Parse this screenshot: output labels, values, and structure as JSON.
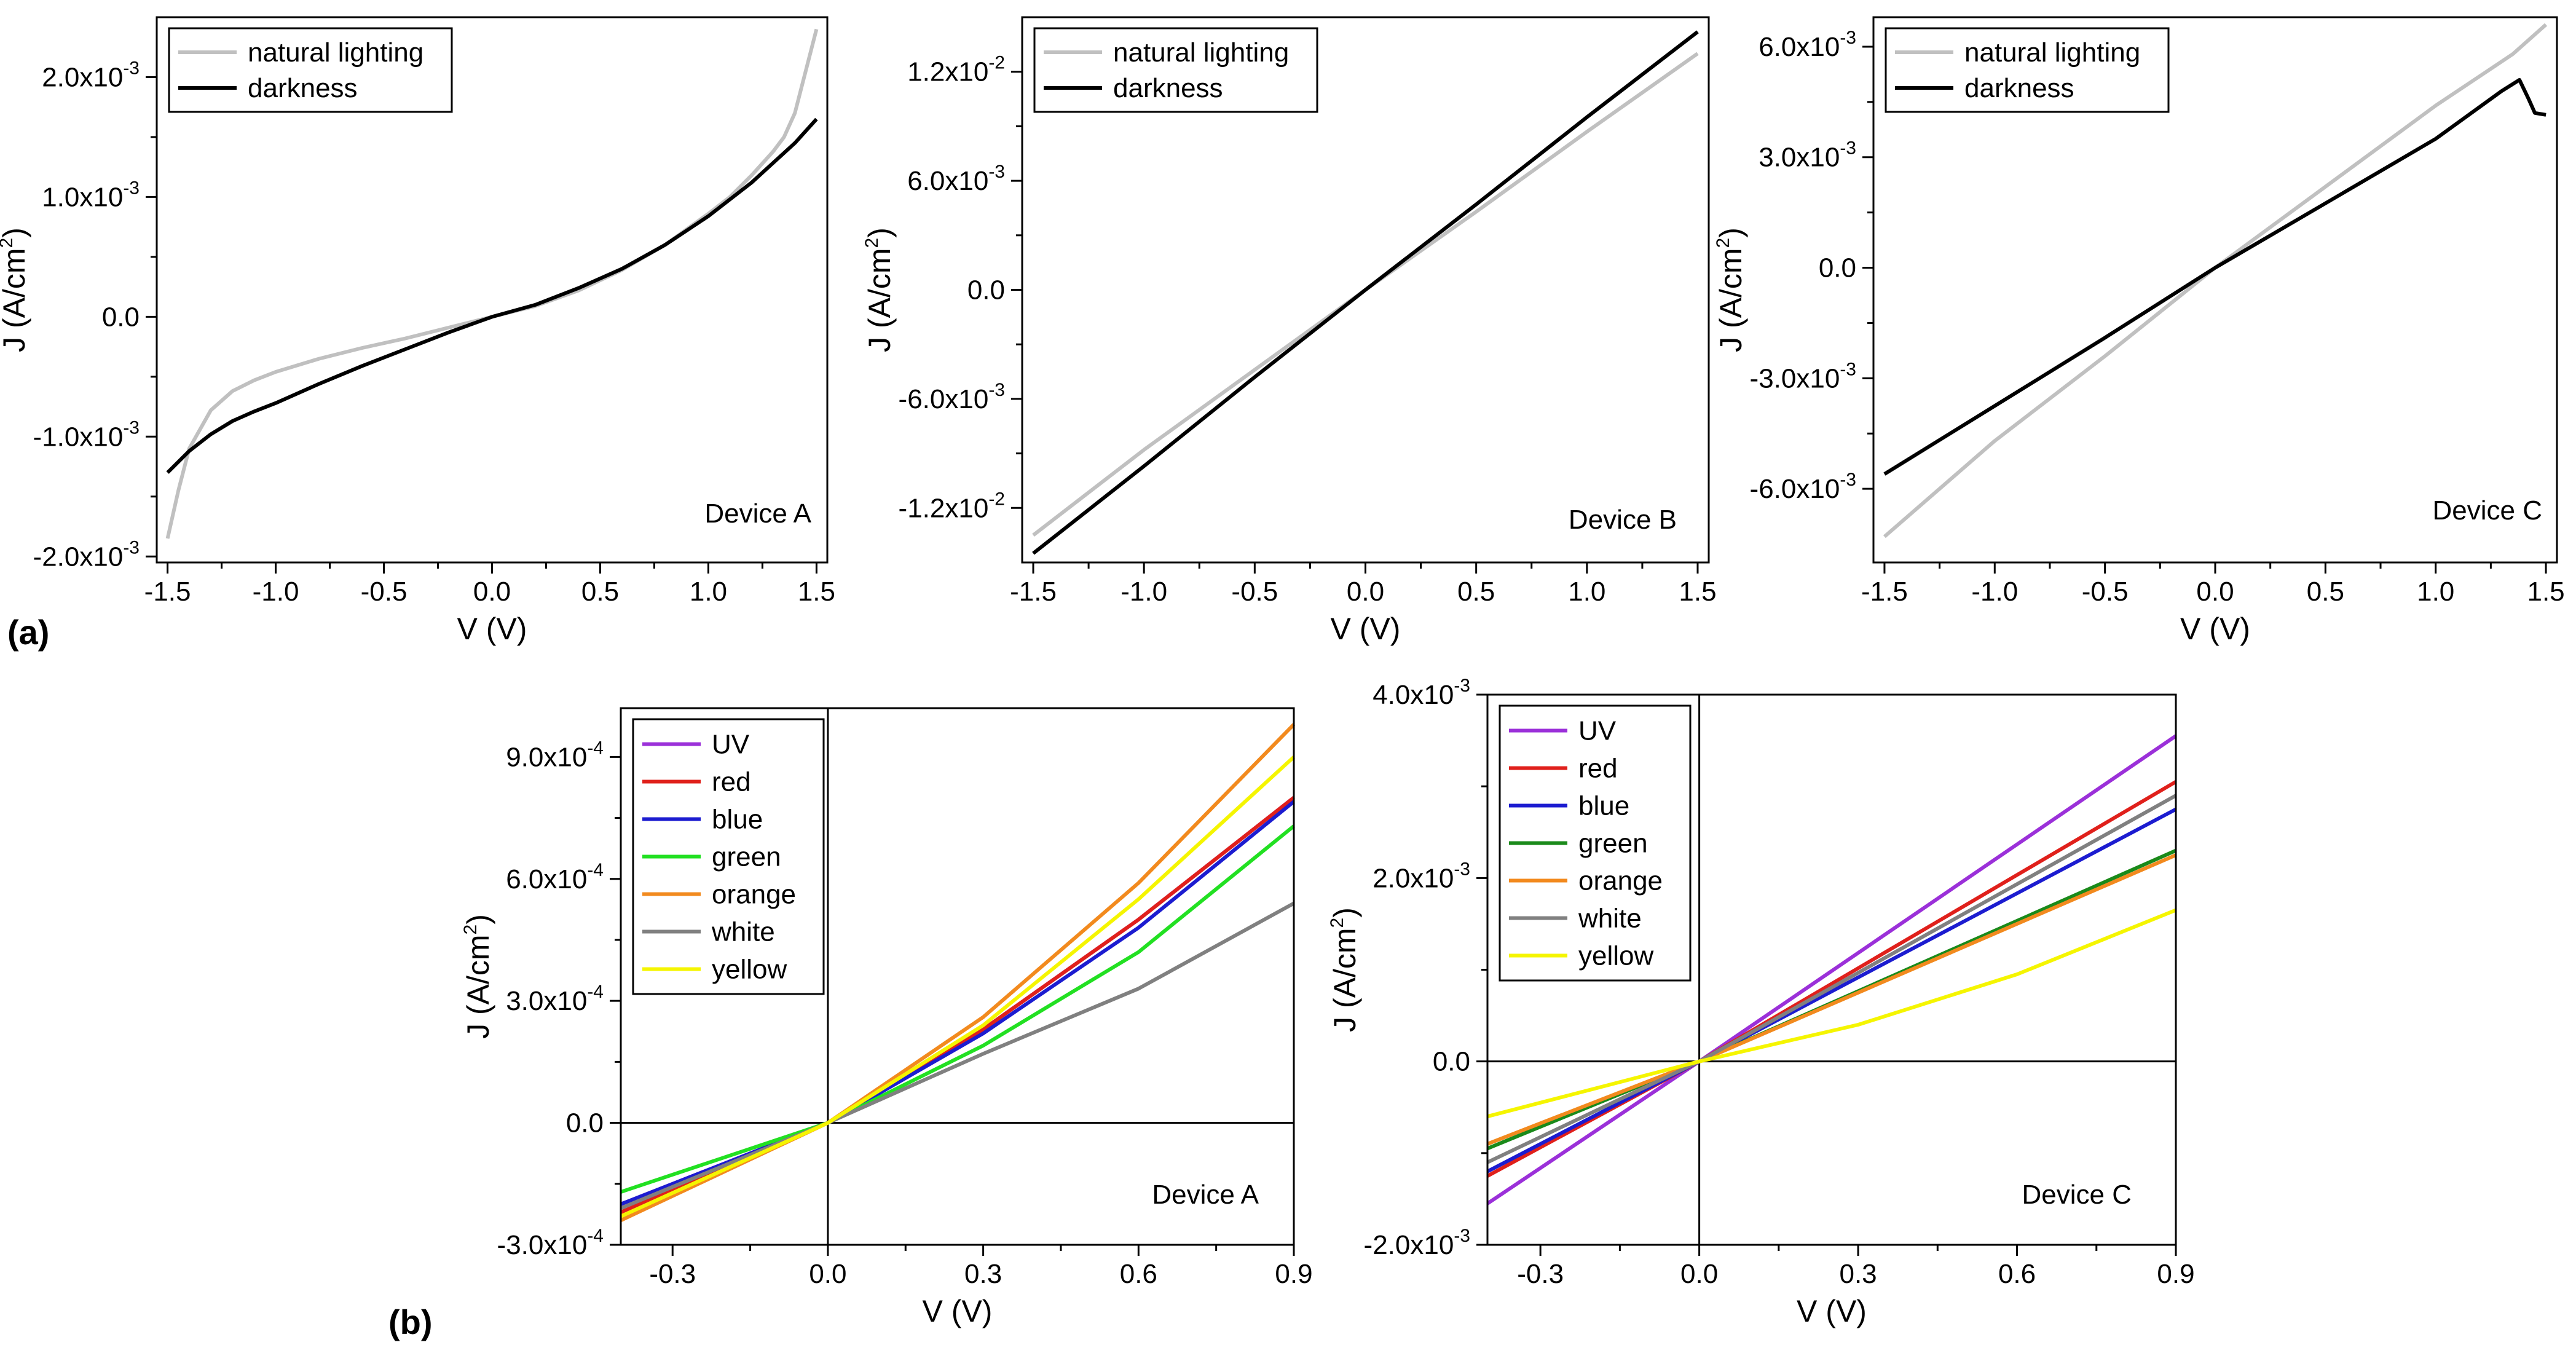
{
  "panel_labels": {
    "a": "(a)",
    "b": "(b)"
  },
  "chart_data": [
    {
      "id": "a1",
      "type": "line",
      "device_label": "Device A",
      "xlabel": "V (V)",
      "ylabel": "J (A/cm2)",
      "xlim": [
        -1.55,
        1.55
      ],
      "ylim": [
        -0.00205,
        0.0025
      ],
      "xticks": [
        -1.5,
        -1.0,
        -0.5,
        0.0,
        0.5,
        1.0,
        1.5
      ],
      "xtick_labels": [
        "-1.5",
        "-1.0",
        "-0.5",
        "0.0",
        "0.5",
        "1.0",
        "1.5"
      ],
      "yticks": [
        -0.002,
        -0.001,
        0,
        0.001,
        0.002
      ],
      "ytick_labels": [
        {
          "mant": "-2.0x10",
          "exp": "-3"
        },
        {
          "mant": "-1.0x10",
          "exp": "-3"
        },
        {
          "mant": "0.0",
          "exp": ""
        },
        {
          "mant": "1.0x10",
          "exp": "-3"
        },
        {
          "mant": "2.0x10",
          "exp": "-3"
        }
      ],
      "zero_lines": false,
      "legend": "top-left",
      "series": [
        {
          "name": "natural lighting",
          "color": "#c0c0c0",
          "x": [
            -1.5,
            -1.45,
            -1.4,
            -1.3,
            -1.2,
            -1.1,
            -1.0,
            -0.8,
            -0.6,
            -0.4,
            -0.2,
            0.0,
            0.2,
            0.4,
            0.6,
            0.8,
            1.0,
            1.1,
            1.2,
            1.3,
            1.35,
            1.4,
            1.45,
            1.5
          ],
          "y": [
            -0.00185,
            -0.00145,
            -0.0011,
            -0.00078,
            -0.00062,
            -0.00053,
            -0.00046,
            -0.00035,
            -0.00026,
            -0.00018,
            -9e-05,
            0.0,
            9e-05,
            0.00022,
            0.00039,
            0.0006,
            0.00086,
            0.001,
            0.00118,
            0.00138,
            0.0015,
            0.0017,
            0.00205,
            0.0024
          ]
        },
        {
          "name": "darkness",
          "color": "#000000",
          "x": [
            -1.5,
            -1.4,
            -1.3,
            -1.2,
            -1.1,
            -1.0,
            -0.8,
            -0.6,
            -0.4,
            -0.2,
            0.0,
            0.2,
            0.4,
            0.6,
            0.8,
            1.0,
            1.2,
            1.4,
            1.5
          ],
          "y": [
            -0.0013,
            -0.00112,
            -0.00098,
            -0.00087,
            -0.00079,
            -0.00072,
            -0.00056,
            -0.00041,
            -0.00027,
            -0.00013,
            0.0,
            0.0001,
            0.00024,
            0.0004,
            0.0006,
            0.00084,
            0.00112,
            0.00145,
            0.00165
          ]
        }
      ]
    },
    {
      "id": "a2",
      "type": "line",
      "device_label": "Device B",
      "xlabel": "V (V)",
      "ylabel": "J (A/cm2)",
      "xlim": [
        -1.55,
        1.55
      ],
      "ylim": [
        -0.015,
        0.015
      ],
      "xticks": [
        -1.5,
        -1.0,
        -0.5,
        0.0,
        0.5,
        1.0,
        1.5
      ],
      "xtick_labels": [
        "-1.5",
        "-1.0",
        "-0.5",
        "0.0",
        "0.5",
        "1.0",
        "1.5"
      ],
      "yticks": [
        -0.012,
        -0.006,
        0,
        0.006,
        0.012
      ],
      "ytick_labels": [
        {
          "mant": "-1.2x10",
          "exp": "-2"
        },
        {
          "mant": "-6.0x10",
          "exp": "-3"
        },
        {
          "mant": "0.0",
          "exp": ""
        },
        {
          "mant": "6.0x10",
          "exp": "-3"
        },
        {
          "mant": "1.2x10",
          "exp": "-2"
        }
      ],
      "zero_lines": false,
      "legend": "top-left",
      "series": [
        {
          "name": "natural lighting",
          "color": "#c0c0c0",
          "x": [
            -1.5,
            -1.0,
            -0.5,
            0.0,
            0.5,
            1.0,
            1.5
          ],
          "y": [
            -0.0135,
            -0.0088,
            -0.0044,
            0.0,
            0.0043,
            0.0087,
            0.013
          ]
        },
        {
          "name": "darkness",
          "color": "#000000",
          "x": [
            -1.5,
            -1.0,
            -0.5,
            0.0,
            0.5,
            1.0,
            1.5
          ],
          "y": [
            -0.0145,
            -0.0097,
            -0.0048,
            0.0,
            0.0047,
            0.0095,
            0.0142
          ]
        }
      ]
    },
    {
      "id": "a3",
      "type": "line",
      "device_label": "Device C",
      "xlabel": "V (V)",
      "ylabel": "J (A/cm2)",
      "xlim": [
        -1.55,
        1.55
      ],
      "ylim": [
        -0.008,
        0.0068
      ],
      "xticks": [
        -1.5,
        -1.0,
        -0.5,
        0.0,
        0.5,
        1.0,
        1.5
      ],
      "xtick_labels": [
        "-1.5",
        "-1.0",
        "-0.5",
        "0.0",
        "0.5",
        "1.0",
        "1.5"
      ],
      "yticks": [
        -0.006,
        -0.003,
        0,
        0.003,
        0.006
      ],
      "ytick_labels": [
        {
          "mant": "-6.0x10",
          "exp": "-3"
        },
        {
          "mant": "-3.0x10",
          "exp": "-3"
        },
        {
          "mant": "0.0",
          "exp": ""
        },
        {
          "mant": "3.0x10",
          "exp": "-3"
        },
        {
          "mant": "6.0x10",
          "exp": "-3"
        }
      ],
      "zero_lines": false,
      "legend": "top-left",
      "series": [
        {
          "name": "natural lighting",
          "color": "#c0c0c0",
          "x": [
            -1.5,
            -1.0,
            -0.5,
            -0.25,
            0.0,
            0.5,
            1.0,
            1.35,
            1.5
          ],
          "y": [
            -0.0073,
            -0.0047,
            -0.0024,
            -0.0012,
            0.0,
            0.0022,
            0.0044,
            0.0058,
            0.0066
          ]
        },
        {
          "name": "darkness",
          "color": "#000000",
          "x": [
            -1.5,
            -1.0,
            -0.5,
            0.0,
            0.5,
            1.0,
            1.3,
            1.38,
            1.42,
            1.45,
            1.5
          ],
          "y": [
            -0.0056,
            -0.00375,
            -0.0019,
            0.0,
            0.00175,
            0.0035,
            0.0048,
            0.0051,
            0.0046,
            0.0042,
            0.00415
          ]
        }
      ]
    },
    {
      "id": "b1",
      "type": "line",
      "device_label": "Device A",
      "xlabel": "V (V)",
      "ylabel": "J (A/cm2)",
      "xlim": [
        -0.4,
        0.9
      ],
      "ylim": [
        -0.0003,
        0.00102
      ],
      "xticks": [
        -0.3,
        0.0,
        0.3,
        0.6,
        0.9
      ],
      "xtick_labels": [
        "-0.3",
        "0.0",
        "0.3",
        "0.6",
        "0.9"
      ],
      "yticks": [
        -0.0003,
        0,
        0.0003,
        0.0006,
        0.0009
      ],
      "ytick_labels": [
        {
          "mant": "-3.0x10",
          "exp": "-4"
        },
        {
          "mant": "0.0",
          "exp": ""
        },
        {
          "mant": "3.0x10",
          "exp": "-4"
        },
        {
          "mant": "6.0x10",
          "exp": "-4"
        },
        {
          "mant": "9.0x10",
          "exp": "-4"
        }
      ],
      "zero_lines": true,
      "legend": "top-left",
      "series": [
        {
          "name": "UV",
          "color": "#9b30d9",
          "x": [
            -0.4,
            0.0,
            0.3,
            0.6,
            0.9
          ],
          "y": [
            -0.0002,
            0.0,
            0.00023,
            0.0005,
            0.0008
          ]
        },
        {
          "name": "red",
          "color": "#e0201b",
          "x": [
            -0.4,
            0.0,
            0.3,
            0.6,
            0.9
          ],
          "y": [
            -0.00022,
            0.0,
            0.00023,
            0.0005,
            0.0008
          ]
        },
        {
          "name": "blue",
          "color": "#1c1cd0",
          "x": [
            -0.4,
            0.0,
            0.3,
            0.6,
            0.9
          ],
          "y": [
            -0.0002,
            0.0,
            0.00022,
            0.00048,
            0.00079
          ]
        },
        {
          "name": "green",
          "color": "#22e022",
          "x": [
            -0.4,
            0.0,
            0.3,
            0.6,
            0.9
          ],
          "y": [
            -0.00017,
            0.0,
            0.00019,
            0.00042,
            0.00073
          ]
        },
        {
          "name": "orange",
          "color": "#f28a1e",
          "x": [
            -0.4,
            0.0,
            0.3,
            0.6,
            0.9
          ],
          "y": [
            -0.00024,
            0.0,
            0.00026,
            0.00059,
            0.00098
          ]
        },
        {
          "name": "white",
          "color": "#808080",
          "x": [
            -0.4,
            0.0,
            0.3,
            0.6,
            0.9
          ],
          "y": [
            -0.00021,
            0.0,
            0.00017,
            0.00033,
            0.00054
          ]
        },
        {
          "name": "yellow",
          "color": "#f5f500",
          "x": [
            -0.4,
            0.0,
            0.3,
            0.6,
            0.9
          ],
          "y": [
            -0.00023,
            0.0,
            0.00024,
            0.00055,
            0.0009
          ]
        }
      ]
    },
    {
      "id": "b2",
      "type": "line",
      "device_label": "Device C",
      "xlabel": "V (V)",
      "ylabel": "J (A/cm2)",
      "xlim": [
        -0.4,
        0.9
      ],
      "ylim": [
        -0.002,
        0.004
      ],
      "xticks": [
        -0.3,
        0.0,
        0.3,
        0.6,
        0.9
      ],
      "xtick_labels": [
        "-0.3",
        "0.0",
        "0.3",
        "0.6",
        "0.9"
      ],
      "yticks": [
        -0.002,
        0,
        0.002,
        0.004
      ],
      "ytick_labels": [
        {
          "mant": "-2.0x10",
          "exp": "-3"
        },
        {
          "mant": "0.0",
          "exp": ""
        },
        {
          "mant": "2.0x10",
          "exp": "-3"
        },
        {
          "mant": "4.0x10",
          "exp": "-3"
        }
      ],
      "zero_lines": true,
      "legend": "top-left",
      "series": [
        {
          "name": "UV",
          "color": "#9b30d9",
          "x": [
            -0.4,
            0.0,
            0.9
          ],
          "y": [
            -0.00155,
            0.0,
            0.00355
          ]
        },
        {
          "name": "red",
          "color": "#e0201b",
          "x": [
            -0.4,
            0.0,
            0.9
          ],
          "y": [
            -0.00125,
            0.0,
            0.00305
          ]
        },
        {
          "name": "blue",
          "color": "#1c1cd0",
          "x": [
            -0.4,
            0.0,
            0.9
          ],
          "y": [
            -0.0012,
            0.0,
            0.00275
          ]
        },
        {
          "name": "green",
          "color": "#1a8a1a",
          "x": [
            -0.4,
            0.0,
            0.9
          ],
          "y": [
            -0.00095,
            0.0,
            0.0023
          ]
        },
        {
          "name": "orange",
          "color": "#f28a1e",
          "x": [
            -0.4,
            0.0,
            0.9
          ],
          "y": [
            -0.0009,
            0.0,
            0.00225
          ]
        },
        {
          "name": "white",
          "color": "#808080",
          "x": [
            -0.4,
            0.0,
            0.9
          ],
          "y": [
            -0.0011,
            0.0,
            0.0029
          ]
        },
        {
          "name": "yellow",
          "color": "#f5f500",
          "x": [
            -0.4,
            0.0,
            0.3,
            0.6,
            0.9
          ],
          "y": [
            -0.0006,
            0.0,
            0.0004,
            0.00095,
            0.00165
          ]
        }
      ]
    }
  ]
}
